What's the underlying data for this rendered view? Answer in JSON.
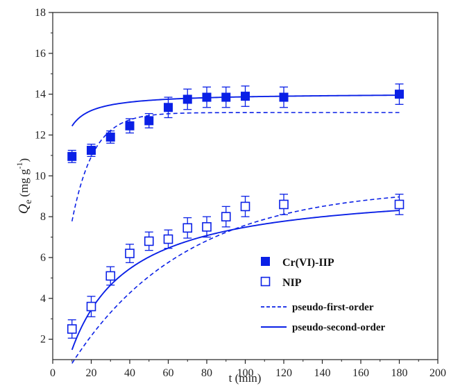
{
  "chart_data": {
    "type": "scatter",
    "xlabel": "t (min)",
    "ylabel_main": "Q",
    "ylabel_sub": "e",
    "ylabel_unit": "(mg g",
    "ylabel_sup": "-1",
    "ylabel_close": ")",
    "xlim": [
      0,
      200
    ],
    "ylim": [
      1,
      18
    ],
    "xticks": [
      0,
      20,
      40,
      60,
      80,
      100,
      120,
      140,
      160,
      180,
      200
    ],
    "yticks": [
      2,
      4,
      6,
      8,
      10,
      12,
      14,
      16,
      18
    ],
    "grid": false,
    "legend_position": "bottom-right",
    "colors": {
      "series": "#0a20e6",
      "axis": "#222222"
    },
    "series": [
      {
        "name": "Cr(VI)-IIP",
        "marker": "filled-square",
        "x": [
          10,
          20,
          30,
          40,
          50,
          60,
          70,
          80,
          90,
          100,
          120,
          180
        ],
        "y": [
          10.95,
          11.25,
          11.9,
          12.45,
          12.7,
          13.35,
          13.75,
          13.85,
          13.85,
          13.9,
          13.85,
          14.0
        ],
        "err": [
          0.3,
          0.3,
          0.3,
          0.35,
          0.35,
          0.5,
          0.5,
          0.5,
          0.5,
          0.5,
          0.5,
          0.5
        ]
      },
      {
        "name": "NIP",
        "marker": "open-square",
        "x": [
          10,
          20,
          30,
          40,
          50,
          60,
          70,
          80,
          90,
          100,
          120,
          180
        ],
        "y": [
          2.5,
          3.6,
          5.1,
          6.2,
          6.8,
          6.9,
          7.45,
          7.5,
          8.0,
          8.5,
          8.6,
          8.6
        ],
        "err": [
          0.45,
          0.5,
          0.45,
          0.45,
          0.45,
          0.45,
          0.5,
          0.5,
          0.5,
          0.5,
          0.5,
          0.5
        ]
      }
    ],
    "fits": [
      {
        "name": "pseudo-first-order",
        "style": "dashed",
        "target": "Cr(VI)-IIP",
        "model": "pfo",
        "qe": 13.1,
        "k": 0.09,
        "t0": 0,
        "x_range": [
          10,
          180
        ]
      },
      {
        "name": "pseudo-second-order",
        "style": "solid",
        "target": "Cr(VI)-IIP",
        "model": "pso",
        "qe": 14.05,
        "k": 0.055,
        "t0": 0,
        "x_range": [
          10,
          180
        ]
      },
      {
        "name": "pseudo-first-order",
        "style": "dashed",
        "target": "NIP",
        "model": "pfo",
        "qe": 9.45,
        "k": 0.017,
        "t0": 4.7,
        "x_range": [
          10,
          180
        ]
      },
      {
        "name": "pseudo-second-order",
        "style": "solid",
        "target": "NIP",
        "model": "pso",
        "qe": 9.55,
        "k": 0.004,
        "t0": 5.2,
        "x_range": [
          10,
          180
        ]
      }
    ],
    "legend": [
      {
        "label": "Cr(VI)-IIP",
        "symbol": "filled-square"
      },
      {
        "label": "NIP",
        "symbol": "open-square"
      },
      {
        "label": "pseudo-first-order",
        "symbol": "dashed-line"
      },
      {
        "label": "pseudo-second-order",
        "symbol": "solid-line"
      }
    ]
  }
}
